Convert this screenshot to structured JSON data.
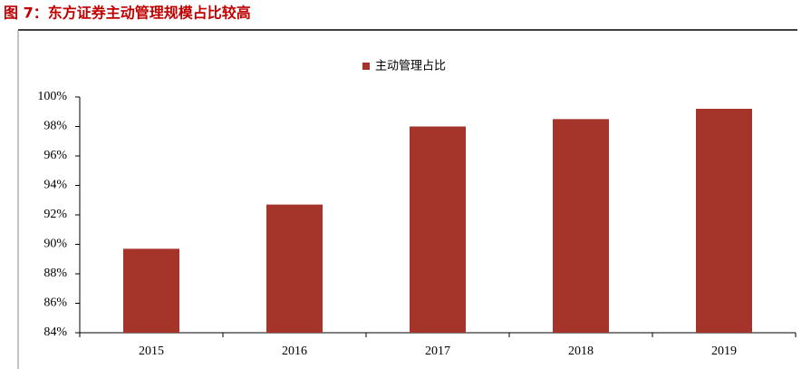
{
  "chart_data": {
    "type": "bar",
    "title": "图 7：东方证券主动管理规模占比较高",
    "categories": [
      "2015",
      "2016",
      "2017",
      "2018",
      "2019"
    ],
    "series": [
      {
        "name": "主动管理占比",
        "color": "#a5352a",
        "values": [
          89.7,
          92.7,
          98.0,
          98.5,
          99.2
        ]
      }
    ],
    "ylim": [
      84,
      100
    ],
    "yticks": [
      {
        "value": 84,
        "label": "84%"
      },
      {
        "value": 86,
        "label": "86%"
      },
      {
        "value": 88,
        "label": "88%"
      },
      {
        "value": 90,
        "label": "90%"
      },
      {
        "value": 92,
        "label": "92%"
      },
      {
        "value": 94,
        "label": "94%"
      },
      {
        "value": 96,
        "label": "96%"
      },
      {
        "value": 98,
        "label": "98%"
      },
      {
        "value": 100,
        "label": "100%"
      }
    ],
    "grid": false
  }
}
